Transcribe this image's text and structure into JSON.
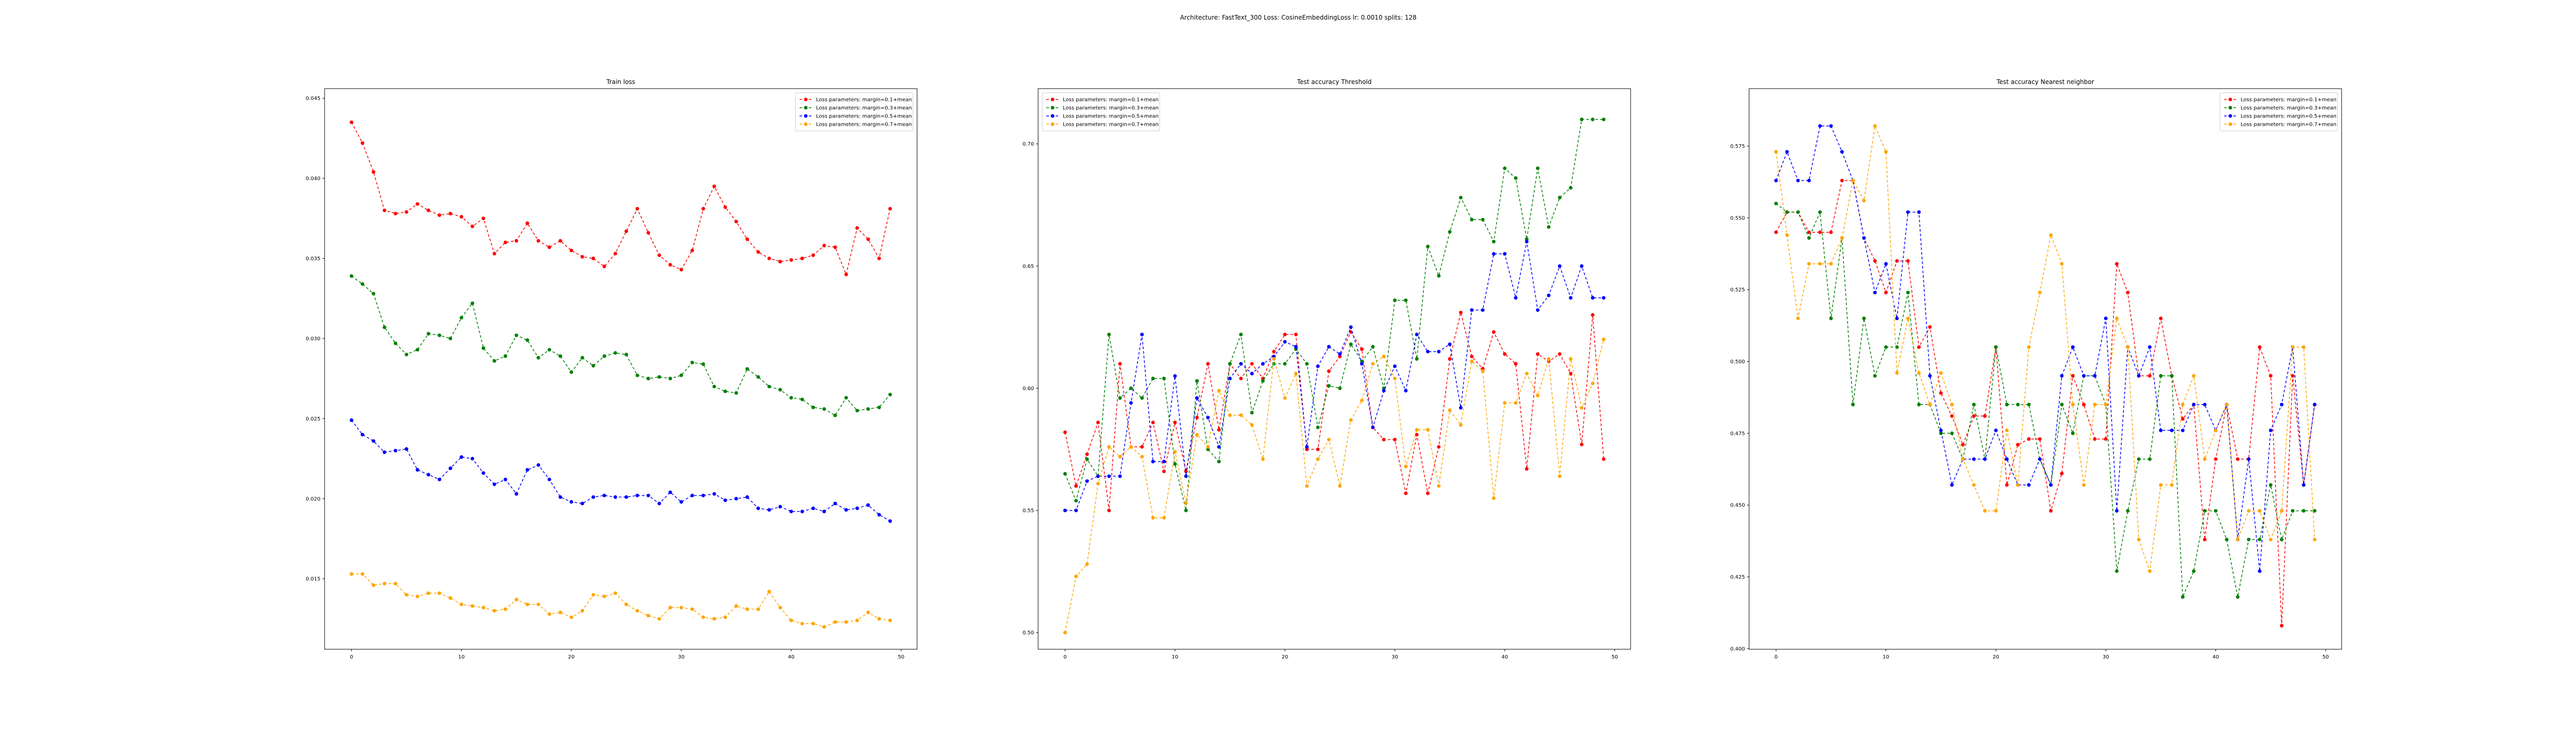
{
  "suptitle": "Architecture: FastText_300 Loss: CosineEmbeddingLoss lr: 0.0010 splits: 128",
  "chart_data": [
    {
      "type": "line",
      "title": "Train loss",
      "xlabel": "",
      "ylabel": "",
      "xlim": [
        -2.45,
        51.45
      ],
      "ylim": [
        0.0106,
        0.0456
      ],
      "xticks": [
        0,
        10,
        20,
        30,
        40,
        50
      ],
      "xticklabels": [
        "0",
        "10",
        "20",
        "30",
        "40",
        "50"
      ],
      "yticks": [
        0.015,
        0.02,
        0.025,
        0.03,
        0.035,
        0.04,
        0.045
      ],
      "yticklabels": [
        "0.015",
        "0.020",
        "0.025",
        "0.030",
        "0.035",
        "0.040",
        "0.045"
      ],
      "grid": false,
      "legend": "top-right",
      "x": [
        0,
        1,
        2,
        3,
        4,
        5,
        6,
        7,
        8,
        9,
        10,
        11,
        12,
        13,
        14,
        15,
        16,
        17,
        18,
        19,
        20,
        21,
        22,
        23,
        24,
        25,
        26,
        27,
        28,
        29,
        30,
        31,
        32,
        33,
        34,
        35,
        36,
        37,
        38,
        39,
        40,
        41,
        42,
        43,
        44,
        45,
        46,
        47,
        48,
        49
      ],
      "series": [
        {
          "name": "Loss parameters: margin=0.1+mean",
          "color": "#ff0000",
          "values": [
            0.0435,
            0.0422,
            0.0404,
            0.038,
            0.0378,
            0.0379,
            0.0384,
            0.038,
            0.0377,
            0.0378,
            0.0376,
            0.037,
            0.0375,
            0.0353,
            0.036,
            0.0361,
            0.0372,
            0.0361,
            0.0357,
            0.0361,
            0.0355,
            0.0351,
            0.035,
            0.0345,
            0.0353,
            0.0367,
            0.0381,
            0.0366,
            0.0352,
            0.0346,
            0.0343,
            0.0355,
            0.0381,
            0.0395,
            0.0382,
            0.0373,
            0.0362,
            0.0354,
            0.035,
            0.0348,
            0.0349,
            0.035,
            0.0352,
            0.0358,
            0.0357,
            0.034,
            0.0369,
            0.0362,
            0.035,
            0.0381
          ]
        },
        {
          "name": "Loss parameters: margin=0.3+mean",
          "color": "#008000",
          "values": [
            0.0339,
            0.0334,
            0.0328,
            0.0307,
            0.0297,
            0.029,
            0.0293,
            0.0303,
            0.0302,
            0.03,
            0.0313,
            0.0322,
            0.0294,
            0.0286,
            0.0289,
            0.0302,
            0.0299,
            0.0288,
            0.0293,
            0.0289,
            0.0279,
            0.0288,
            0.0283,
            0.0289,
            0.0291,
            0.029,
            0.0277,
            0.0275,
            0.0276,
            0.0275,
            0.0277,
            0.0285,
            0.0284,
            0.027,
            0.0267,
            0.0266,
            0.0281,
            0.0276,
            0.027,
            0.0268,
            0.0263,
            0.0262,
            0.0257,
            0.0256,
            0.0252,
            0.0263,
            0.0255,
            0.0256,
            0.0257,
            0.0265
          ]
        },
        {
          "name": "Loss parameters: margin=0.5+mean",
          "color": "#0000ff",
          "values": [
            0.0249,
            0.024,
            0.0236,
            0.0229,
            0.023,
            0.0231,
            0.0218,
            0.0215,
            0.0212,
            0.0219,
            0.0226,
            0.0225,
            0.0216,
            0.0209,
            0.0212,
            0.0203,
            0.0218,
            0.0221,
            0.0212,
            0.0201,
            0.0198,
            0.0197,
            0.0201,
            0.0202,
            0.0201,
            0.0201,
            0.0202,
            0.0202,
            0.0197,
            0.0204,
            0.0198,
            0.0202,
            0.0202,
            0.0203,
            0.0199,
            0.02,
            0.0201,
            0.0194,
            0.0193,
            0.0195,
            0.0192,
            0.0192,
            0.0194,
            0.0192,
            0.0197,
            0.0193,
            0.0194,
            0.0196,
            0.019,
            0.0186
          ]
        },
        {
          "name": "Loss parameters: margin=0.7+mean",
          "color": "#ffa500",
          "values": [
            0.0153,
            0.0153,
            0.0146,
            0.0147,
            0.0147,
            0.014,
            0.0139,
            0.0141,
            0.0141,
            0.0138,
            0.0134,
            0.0133,
            0.0132,
            0.013,
            0.0131,
            0.0137,
            0.0134,
            0.0134,
            0.0128,
            0.0129,
            0.0126,
            0.013,
            0.014,
            0.0139,
            0.0141,
            0.0134,
            0.013,
            0.0127,
            0.0125,
            0.0132,
            0.0132,
            0.0131,
            0.0126,
            0.0125,
            0.0126,
            0.0133,
            0.0131,
            0.0131,
            0.0142,
            0.0132,
            0.0124,
            0.0122,
            0.0122,
            0.012,
            0.0123,
            0.0123,
            0.0124,
            0.0129,
            0.0125,
            0.0124
          ]
        }
      ]
    },
    {
      "type": "line",
      "title": "Test accuracy Threshold",
      "xlabel": "",
      "ylabel": "",
      "xlim": [
        -2.45,
        51.45
      ],
      "ylim": [
        0.4932,
        0.7226
      ],
      "xticks": [
        0,
        10,
        20,
        30,
        40,
        50
      ],
      "xticklabels": [
        "0",
        "10",
        "20",
        "30",
        "40",
        "50"
      ],
      "yticks": [
        0.5,
        0.55,
        0.6,
        0.65,
        0.7
      ],
      "yticklabels": [
        "0.50",
        "0.55",
        "0.60",
        "0.65",
        "0.70"
      ],
      "grid": false,
      "legend": "top-left",
      "x": [
        0,
        1,
        2,
        3,
        4,
        5,
        6,
        7,
        8,
        9,
        10,
        11,
        12,
        13,
        14,
        15,
        16,
        17,
        18,
        19,
        20,
        21,
        22,
        23,
        24,
        25,
        26,
        27,
        28,
        29,
        30,
        31,
        32,
        33,
        34,
        35,
        36,
        37,
        38,
        39,
        40,
        41,
        42,
        43,
        44,
        45,
        46,
        47,
        48,
        49
      ],
      "series": [
        {
          "name": "Loss parameters: margin=0.1+mean",
          "color": "#ff0000",
          "values": [
            0.582,
            0.56,
            0.573,
            0.586,
            0.55,
            0.61,
            0.576,
            0.576,
            0.586,
            0.566,
            0.586,
            0.566,
            0.588,
            0.61,
            0.583,
            0.61,
            0.604,
            0.61,
            0.604,
            0.615,
            0.622,
            0.622,
            0.575,
            0.575,
            0.607,
            0.613,
            0.623,
            0.616,
            0.584,
            0.579,
            0.579,
            0.557,
            0.581,
            0.557,
            0.576,
            0.612,
            0.631,
            0.613,
            0.608,
            0.623,
            0.614,
            0.61,
            0.567,
            0.614,
            0.611,
            0.614,
            0.606,
            0.577,
            0.63,
            0.571
          ]
        },
        {
          "name": "Loss parameters: margin=0.3+mean",
          "color": "#008000",
          "values": [
            0.565,
            0.554,
            0.571,
            0.564,
            0.622,
            0.596,
            0.6,
            0.596,
            0.604,
            0.604,
            0.569,
            0.55,
            0.603,
            0.575,
            0.57,
            0.61,
            0.622,
            0.59,
            0.603,
            0.61,
            0.61,
            0.616,
            0.61,
            0.584,
            0.601,
            0.6,
            0.618,
            0.611,
            0.617,
            0.6,
            0.636,
            0.636,
            0.612,
            0.658,
            0.646,
            0.664,
            0.678,
            0.669,
            0.669,
            0.66,
            0.69,
            0.686,
            0.661,
            0.69,
            0.666,
            0.678,
            0.682,
            0.71,
            0.71,
            0.71
          ]
        },
        {
          "name": "Loss parameters: margin=0.5+mean",
          "color": "#0000ff",
          "values": [
            0.55,
            0.55,
            0.562,
            0.564,
            0.564,
            0.564,
            0.594,
            0.622,
            0.57,
            0.57,
            0.605,
            0.564,
            0.596,
            0.588,
            0.576,
            0.604,
            0.61,
            0.606,
            0.61,
            0.613,
            0.619,
            0.617,
            0.576,
            0.609,
            0.617,
            0.614,
            0.625,
            0.61,
            0.584,
            0.599,
            0.609,
            0.599,
            0.622,
            0.615,
            0.615,
            0.618,
            0.592,
            0.632,
            0.632,
            0.655,
            0.655,
            0.637,
            0.66,
            0.632,
            0.638,
            0.65,
            0.637,
            0.65,
            0.637,
            0.637
          ]
        },
        {
          "name": "Loss parameters: margin=0.7+mean",
          "color": "#ffa500",
          "values": [
            0.5,
            0.523,
            0.528,
            0.561,
            0.576,
            0.572,
            0.576,
            0.572,
            0.547,
            0.547,
            0.574,
            0.553,
            0.581,
            0.576,
            0.599,
            0.589,
            0.589,
            0.585,
            0.571,
            0.612,
            0.596,
            0.606,
            0.56,
            0.571,
            0.579,
            0.56,
            0.587,
            0.595,
            0.61,
            0.613,
            0.604,
            0.568,
            0.583,
            0.583,
            0.56,
            0.591,
            0.585,
            0.611,
            0.607,
            0.555,
            0.594,
            0.594,
            0.606,
            0.597,
            0.612,
            0.564,
            0.612,
            0.592,
            0.602,
            0.62
          ]
        }
      ]
    },
    {
      "type": "line",
      "title": "Test accuracy Nearest neighbor",
      "xlabel": "",
      "ylabel": "",
      "xlim": [
        -2.45,
        51.45
      ],
      "ylim": [
        0.3998,
        0.595
      ],
      "xticks": [
        0,
        10,
        20,
        30,
        40,
        50
      ],
      "xticklabels": [
        "0",
        "10",
        "20",
        "30",
        "40",
        "50"
      ],
      "yticks": [
        0.4,
        0.425,
        0.45,
        0.475,
        0.5,
        0.525,
        0.55,
        0.575
      ],
      "yticklabels": [
        "0.400",
        "0.425",
        "0.450",
        "0.475",
        "0.500",
        "0.525",
        "0.550",
        "0.575"
      ],
      "grid": false,
      "legend": "top-right",
      "x": [
        0,
        1,
        2,
        3,
        4,
        5,
        6,
        7,
        8,
        9,
        10,
        11,
        12,
        13,
        14,
        15,
        16,
        17,
        18,
        19,
        20,
        21,
        22,
        23,
        24,
        25,
        26,
        27,
        28,
        29,
        30,
        31,
        32,
        33,
        34,
        35,
        36,
        37,
        38,
        39,
        40,
        41,
        42,
        43,
        44,
        45,
        46,
        47,
        48,
        49
      ],
      "series": [
        {
          "name": "Loss parameters: margin=0.1+mean",
          "color": "#ff0000",
          "values": [
            0.545,
            0.552,
            0.552,
            0.545,
            0.545,
            0.545,
            0.563,
            0.563,
            0.543,
            0.535,
            0.524,
            0.535,
            0.535,
            0.505,
            0.512,
            0.489,
            0.481,
            0.471,
            0.481,
            0.481,
            0.505,
            0.457,
            0.471,
            0.473,
            0.473,
            0.448,
            0.461,
            0.495,
            0.485,
            0.473,
            0.473,
            0.534,
            0.524,
            0.495,
            0.495,
            0.515,
            0.495,
            0.48,
            0.485,
            0.438,
            0.466,
            0.485,
            0.466,
            0.466,
            0.505,
            0.495,
            0.408,
            0.495,
            0.457,
            0.485
          ]
        },
        {
          "name": "Loss parameters: margin=0.3+mean",
          "color": "#008000",
          "values": [
            0.555,
            0.552,
            0.552,
            0.543,
            0.552,
            0.515,
            0.543,
            0.485,
            0.515,
            0.495,
            0.505,
            0.505,
            0.524,
            0.485,
            0.485,
            0.475,
            0.475,
            0.466,
            0.485,
            0.466,
            0.505,
            0.485,
            0.485,
            0.485,
            0.466,
            0.457,
            0.485,
            0.475,
            0.495,
            0.495,
            0.485,
            0.427,
            0.448,
            0.466,
            0.466,
            0.495,
            0.495,
            0.418,
            0.427,
            0.448,
            0.448,
            0.438,
            0.418,
            0.438,
            0.438,
            0.457,
            0.438,
            0.448,
            0.448,
            0.448
          ]
        },
        {
          "name": "Loss parameters: margin=0.5+mean",
          "color": "#0000ff",
          "values": [
            0.563,
            0.573,
            0.563,
            0.563,
            0.582,
            0.582,
            0.573,
            0.563,
            0.543,
            0.524,
            0.534,
            0.515,
            0.552,
            0.552,
            0.495,
            0.476,
            0.457,
            0.466,
            0.466,
            0.466,
            0.476,
            0.466,
            0.457,
            0.457,
            0.466,
            0.457,
            0.495,
            0.505,
            0.495,
            0.495,
            0.515,
            0.448,
            0.505,
            0.495,
            0.505,
            0.476,
            0.476,
            0.476,
            0.485,
            0.485,
            0.476,
            0.485,
            0.438,
            0.466,
            0.427,
            0.476,
            0.485,
            0.505,
            0.457,
            0.485
          ]
        },
        {
          "name": "Loss parameters: margin=0.7+mean",
          "color": "#ffa500",
          "values": [
            0.573,
            0.544,
            0.515,
            0.534,
            0.534,
            0.534,
            0.543,
            0.563,
            0.556,
            0.582,
            0.573,
            0.496,
            0.515,
            0.496,
            0.485,
            0.496,
            0.485,
            0.466,
            0.457,
            0.448,
            0.448,
            0.476,
            0.457,
            0.505,
            0.524,
            0.544,
            0.534,
            0.485,
            0.457,
            0.485,
            0.485,
            0.515,
            0.505,
            0.438,
            0.427,
            0.457,
            0.457,
            0.485,
            0.495,
            0.466,
            0.476,
            0.485,
            0.438,
            0.448,
            0.448,
            0.438,
            0.448,
            0.505,
            0.505,
            0.438
          ]
        }
      ]
    }
  ]
}
